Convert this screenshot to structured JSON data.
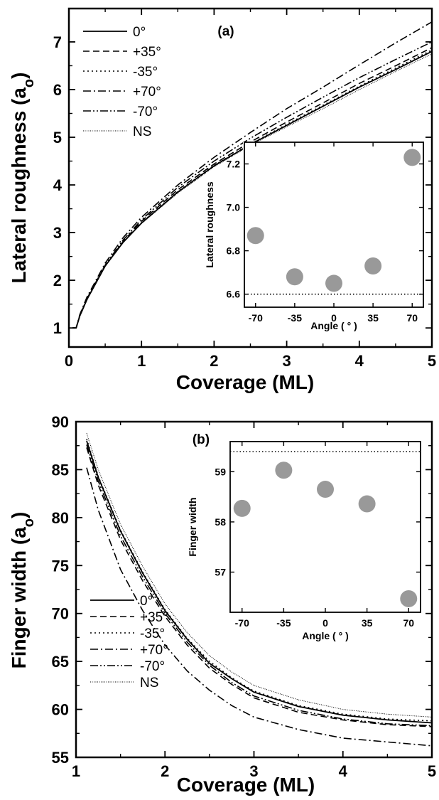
{
  "chart_data": [
    {
      "type": "line",
      "tag": "(a)",
      "xlabel": "Coverage (ML)",
      "ylabel_main": "Lateral roughness (a",
      "ylabel_sub": "o",
      "ylabel_close": ")",
      "xlim": [
        0,
        5
      ],
      "ylim": [
        0.6,
        7.7
      ],
      "xticks": [
        0,
        1,
        2,
        3,
        4,
        5
      ],
      "yticks": [
        1,
        2,
        3,
        4,
        5,
        6,
        7
      ],
      "legend_position": "top-left",
      "series": [
        {
          "name": "0°",
          "dash": "none",
          "width": 1.8,
          "x": [
            0.05,
            0.1,
            0.15,
            0.25,
            0.5,
            0.75,
            1,
            1.5,
            2,
            2.5,
            3,
            3.5,
            4,
            4.5,
            5
          ],
          "y": [
            1.0,
            1.0,
            1.25,
            1.6,
            2.3,
            2.8,
            3.2,
            3.85,
            4.4,
            4.85,
            5.25,
            5.65,
            6.05,
            6.42,
            6.8
          ]
        },
        {
          "name": "+35°",
          "dash": "9,5",
          "width": 1.6,
          "x": [
            0.05,
            0.1,
            0.15,
            0.25,
            0.5,
            0.75,
            1,
            1.5,
            2,
            2.5,
            3,
            3.5,
            4,
            4.5,
            5
          ],
          "y": [
            1.0,
            1.0,
            1.25,
            1.6,
            2.3,
            2.82,
            3.24,
            3.9,
            4.44,
            4.9,
            5.32,
            5.72,
            6.13,
            6.5,
            6.88
          ]
        },
        {
          "name": "-35°",
          "dash": "2,4",
          "width": 1.6,
          "x": [
            0.05,
            0.1,
            0.15,
            0.25,
            0.5,
            0.75,
            1,
            1.5,
            2,
            2.5,
            3,
            3.5,
            4,
            4.5,
            5
          ],
          "y": [
            1.0,
            1.0,
            1.25,
            1.6,
            2.3,
            2.8,
            3.21,
            3.86,
            4.41,
            4.86,
            5.27,
            5.67,
            6.07,
            6.45,
            6.83
          ]
        },
        {
          "name": "+70°",
          "dash": "11,4,2,4",
          "width": 1.6,
          "x": [
            0.05,
            0.1,
            0.15,
            0.25,
            0.5,
            0.75,
            1,
            1.5,
            2,
            2.5,
            3,
            3.5,
            4,
            4.5,
            5
          ],
          "y": [
            1.0,
            1.0,
            1.28,
            1.65,
            2.36,
            2.9,
            3.32,
            4.0,
            4.58,
            5.1,
            5.6,
            6.05,
            6.52,
            6.98,
            7.42
          ]
        },
        {
          "name": "-70°",
          "dash": "11,3,2,3,2,3",
          "width": 1.6,
          "x": [
            0.05,
            0.1,
            0.15,
            0.25,
            0.5,
            0.75,
            1,
            1.5,
            2,
            2.5,
            3,
            3.5,
            4,
            4.5,
            5
          ],
          "y": [
            1.0,
            1.0,
            1.26,
            1.62,
            2.32,
            2.85,
            3.27,
            3.95,
            4.5,
            4.98,
            5.42,
            5.84,
            6.25,
            6.63,
            7.0
          ]
        },
        {
          "name": "NS",
          "dash": "1,1.5",
          "width": 1.0,
          "x": [
            0.05,
            0.1,
            0.15,
            0.25,
            0.5,
            0.75,
            1,
            1.5,
            2,
            2.5,
            3,
            3.5,
            4,
            4.5,
            5
          ],
          "y": [
            1.0,
            1.0,
            1.25,
            1.6,
            2.3,
            2.8,
            3.19,
            3.83,
            4.38,
            4.83,
            5.22,
            5.6,
            6.0,
            6.38,
            6.75
          ]
        }
      ],
      "inset": {
        "type": "scatter",
        "xlabel": "Angle ( ° )",
        "ylabel": "Lateral roughness",
        "xlim": [
          -80,
          80
        ],
        "ylim": [
          6.54,
          7.3
        ],
        "xticks": [
          -70,
          -35,
          0,
          35,
          70
        ],
        "yticks": [
          "6.6",
          "6.8",
          "7.0",
          "7.2"
        ],
        "points": {
          "x": [
            -70,
            -35,
            0,
            35,
            70
          ],
          "y": [
            6.87,
            6.68,
            6.65,
            6.73,
            7.23
          ]
        },
        "reference_line": 6.6,
        "marker_color": "#999999"
      }
    },
    {
      "type": "line",
      "tag": "(b)",
      "xlabel": "Coverage (ML)",
      "ylabel_main": "Finger width (a",
      "ylabel_sub": "o",
      "ylabel_close": ")",
      "xlim": [
        1,
        5
      ],
      "ylim": [
        55,
        90
      ],
      "xticks": [
        1,
        2,
        3,
        4,
        5
      ],
      "yticks": [
        55,
        60,
        65,
        70,
        75,
        80,
        85,
        90
      ],
      "legend_position": "bottom-left",
      "series": [
        {
          "name": "0°",
          "dash": "none",
          "width": 1.8,
          "x": [
            1.12,
            1.25,
            1.5,
            1.75,
            2,
            2.25,
            2.5,
            2.75,
            3,
            3.5,
            4,
            4.5,
            5
          ],
          "y": [
            88,
            84.2,
            78.6,
            74.2,
            70.3,
            67.3,
            64.8,
            63.2,
            61.8,
            60.3,
            59.4,
            58.9,
            58.6
          ]
        },
        {
          "name": "+35°",
          "dash": "9,5",
          "width": 1.6,
          "x": [
            1.12,
            1.25,
            1.5,
            1.75,
            2,
            2.25,
            2.5,
            2.75,
            3,
            3.5,
            4,
            4.5,
            5
          ],
          "y": [
            87.3,
            83.4,
            77.7,
            73.4,
            69.7,
            66.7,
            64.3,
            62.6,
            61.2,
            59.7,
            58.9,
            58.4,
            58.2
          ]
        },
        {
          "name": "-35°",
          "dash": "2,4",
          "width": 1.6,
          "x": [
            1.12,
            1.25,
            1.5,
            1.75,
            2,
            2.25,
            2.5,
            2.75,
            3,
            3.5,
            4,
            4.5,
            5
          ],
          "y": [
            88.2,
            84.3,
            78.7,
            74.3,
            70.4,
            67.4,
            65.0,
            63.3,
            61.9,
            60.4,
            59.5,
            59.0,
            58.8
          ]
        },
        {
          "name": "+70°",
          "dash": "11,4,2,4",
          "width": 1.6,
          "x": [
            1.12,
            1.25,
            1.5,
            1.75,
            2,
            2.25,
            2.5,
            2.75,
            3,
            3.5,
            4,
            4.5,
            5
          ],
          "y": [
            85.2,
            80.8,
            74.6,
            70.3,
            66.7,
            64.0,
            62.0,
            60.4,
            59.2,
            57.9,
            57.0,
            56.6,
            56.2
          ]
        },
        {
          "name": "-70°",
          "dash": "11,3,2,3,2,3",
          "width": 1.6,
          "x": [
            1.12,
            1.25,
            1.5,
            1.75,
            2,
            2.25,
            2.5,
            2.75,
            3,
            3.5,
            4,
            4.5,
            5
          ],
          "y": [
            87.6,
            83.8,
            78.1,
            73.8,
            70.0,
            67.0,
            64.6,
            62.8,
            61.4,
            59.9,
            59.0,
            58.5,
            58.3
          ]
        },
        {
          "name": "NS",
          "dash": "1,1.5",
          "width": 1.0,
          "x": [
            1.12,
            1.25,
            1.5,
            1.75,
            2,
            2.25,
            2.5,
            2.75,
            3,
            3.5,
            4,
            4.5,
            5
          ],
          "y": [
            88.8,
            85.0,
            79.3,
            74.9,
            71.0,
            68.0,
            65.6,
            63.9,
            62.5,
            61.0,
            60.0,
            59.5,
            59.2
          ]
        }
      ],
      "inset": {
        "type": "scatter",
        "xlabel": "Angle ( ° )",
        "ylabel": "Finger width",
        "xlim": [
          -80,
          80
        ],
        "ylim": [
          56.2,
          59.6
        ],
        "xticks": [
          -70,
          -35,
          0,
          35,
          70
        ],
        "yticks": [
          "57",
          "58",
          "59"
        ],
        "points": {
          "x": [
            -70,
            -35,
            0,
            35,
            70
          ],
          "y": [
            58.27,
            59.03,
            58.65,
            58.36,
            56.47
          ]
        },
        "reference_line": 59.4,
        "marker_color": "#999999"
      }
    }
  ]
}
